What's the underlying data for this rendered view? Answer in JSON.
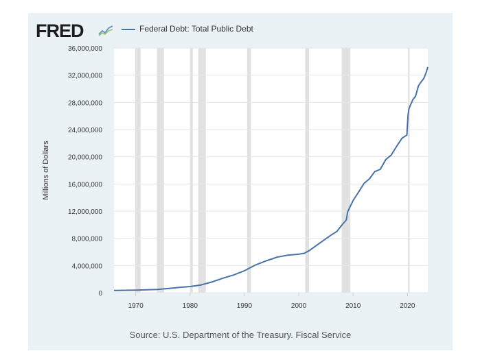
{
  "header": {
    "logo_text": "FRED",
    "legend_label": "Federal Debt: Total Public Debt"
  },
  "source_text": "Source: U.S. Department of the Treasury. Fiscal Service",
  "colors": {
    "frame": "#eaf2f6",
    "plot": "#ffffff",
    "line": "#4572a7",
    "recession": "#e1e1e1",
    "grid": "#e6e6e6"
  },
  "icons": [
    "fred-logo",
    "line-chart-icon"
  ],
  "chart_data": {
    "type": "line",
    "title": "",
    "xlabel": "",
    "ylabel": "Millions of Dollars",
    "xlim": [
      1966,
      2023.75
    ],
    "ylim": [
      0,
      36000000
    ],
    "yticks": [
      0,
      4000000,
      8000000,
      12000000,
      16000000,
      20000000,
      24000000,
      28000000,
      32000000,
      36000000
    ],
    "ytick_labels": [
      "0",
      "4,000,000",
      "8,000,000",
      "12,000,000",
      "16,000,000",
      "20,000,000",
      "24,000,000",
      "28,000,000",
      "32,000,000",
      "36,000,000"
    ],
    "xticks": [
      1970,
      1980,
      1990,
      2000,
      2010,
      2020
    ],
    "xtick_labels": [
      "1970",
      "1980",
      "1990",
      "2000",
      "2010",
      "2020"
    ],
    "grid": true,
    "legend_position": "top",
    "recessions": [
      [
        1969.9,
        1970.9
      ],
      [
        1973.9,
        1975.2
      ],
      [
        1980.0,
        1980.5
      ],
      [
        1981.5,
        1982.9
      ],
      [
        1990.5,
        1991.2
      ],
      [
        2001.2,
        2001.9
      ],
      [
        2007.9,
        2009.5
      ],
      [
        2020.1,
        2020.4
      ]
    ],
    "series": [
      {
        "name": "Federal Debt: Total Public Debt",
        "x": [
          1966,
          1968,
          1970,
          1972,
          1974,
          1976,
          1978,
          1980,
          1982,
          1984,
          1986,
          1988,
          1990,
          1992,
          1994,
          1996,
          1998,
          2000,
          2001,
          2002,
          2004,
          2006,
          2007,
          2008,
          2008.75,
          2009,
          2010,
          2011,
          2012,
          2013,
          2014,
          2015,
          2016,
          2017,
          2018,
          2019,
          2019.9,
          2020.1,
          2020.25,
          2020.5,
          2021,
          2021.5,
          2022,
          2022.5,
          2023,
          2023.5,
          2023.75
        ],
        "y": [
          320000,
          350000,
          380000,
          430000,
          480000,
          620000,
          780000,
          910000,
          1140000,
          1570000,
          2130000,
          2600000,
          3230000,
          4060000,
          4690000,
          5220000,
          5530000,
          5670000,
          5800000,
          6230000,
          7380000,
          8500000,
          9010000,
          10020000,
          10700000,
          11900000,
          13560000,
          14790000,
          16070000,
          16740000,
          17820000,
          18150000,
          19570000,
          20240000,
          21520000,
          22720000,
          23200000,
          26000000,
          26950000,
          27500000,
          28400000,
          28900000,
          30400000,
          31000000,
          31500000,
          32500000,
          33200000
        ]
      }
    ]
  }
}
